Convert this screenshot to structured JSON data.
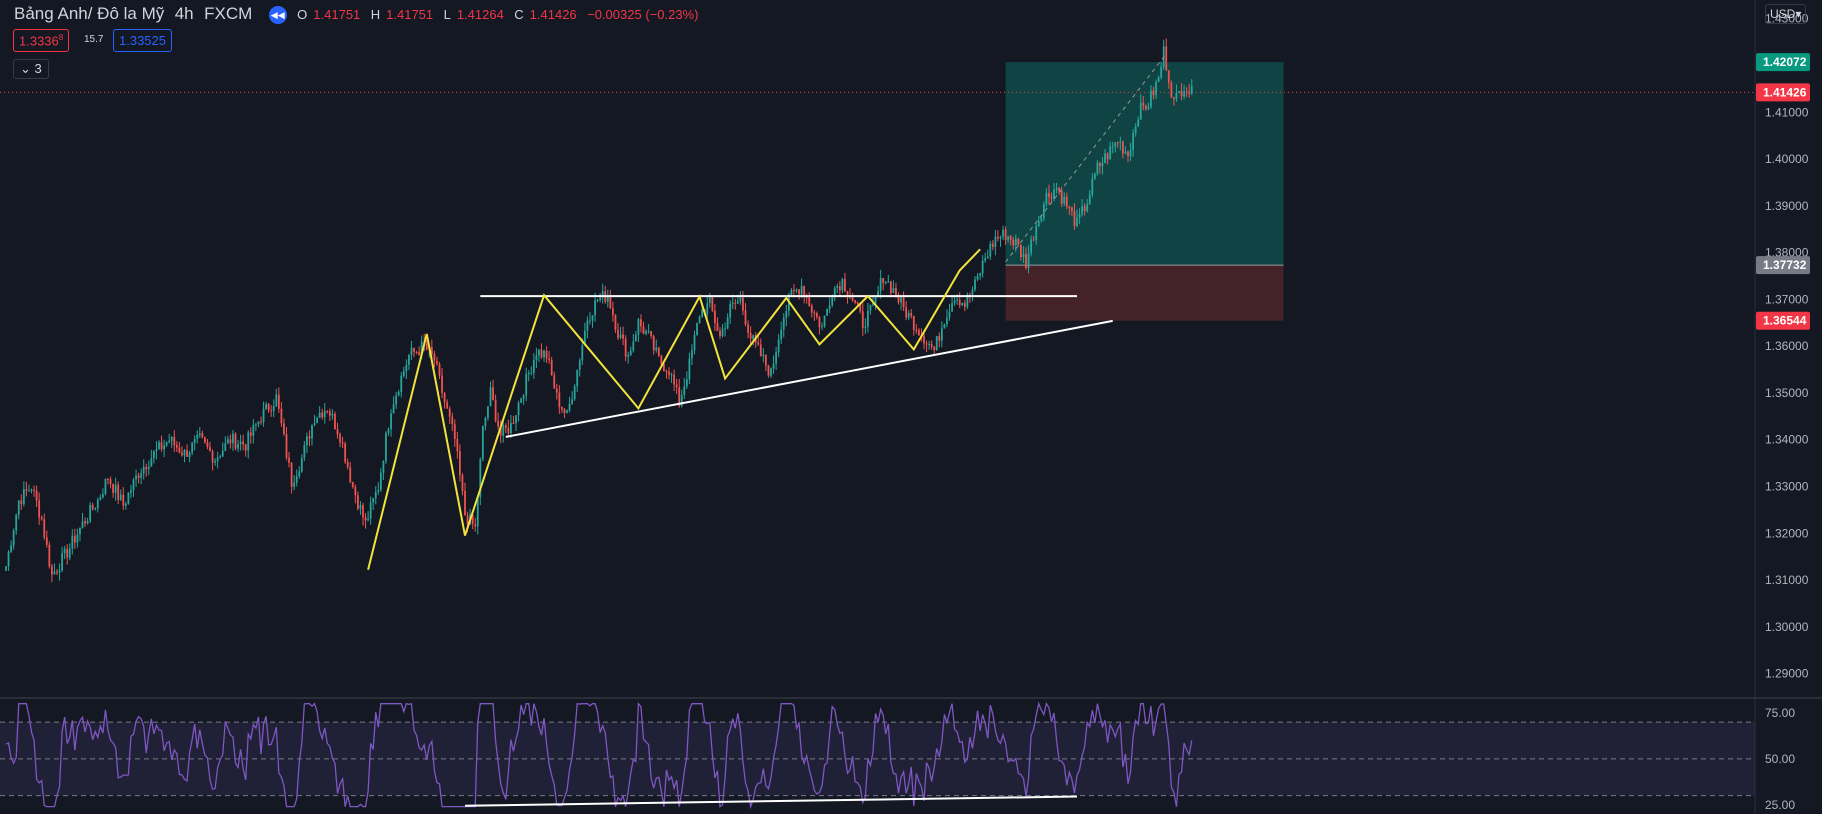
{
  "header": {
    "symbol": "Bảng Anh/ Đô la Mỹ",
    "interval": "4h",
    "exchange": "FXCM",
    "o_label": "O",
    "o_value": "1.41751",
    "h_label": "H",
    "h_value": "1.41751",
    "l_label": "L",
    "l_value": "1.41264",
    "c_label": "C",
    "c_value": "1.41426",
    "change": "−0.00325 (−0.23%)",
    "sell_price": "1.3336",
    "sell_sup": "8",
    "spread": "15.7",
    "buy_price": "1.33525",
    "collapse_icon": "chevron-down-icon",
    "collapse_count": "3",
    "currency_label": "USD"
  },
  "colors": {
    "background": "#141823",
    "up": "#26a69a",
    "down": "#ef5350",
    "pattern": "#f2e33c",
    "trendline": "#ffffff",
    "rsi": "#7e57c2",
    "target_zone": "#0f4c4a",
    "stop_zone": "#4a2329"
  },
  "chart_data": [
    {
      "type": "candlestick",
      "series_name": "GBP/USD 4h",
      "y_axis_ticks": [
        "1.43000",
        "1.42000",
        "1.41000",
        "1.40000",
        "1.39000",
        "1.38000",
        "1.37000",
        "1.36000",
        "1.35000",
        "1.34000",
        "1.33000",
        "1.32000",
        "1.31000",
        "1.30000",
        "1.29000"
      ],
      "ylim": [
        1.285,
        1.434
      ],
      "price_labels": [
        {
          "label": "1.42072",
          "value": 1.42072,
          "color": "#089981"
        },
        {
          "label": "1.41426",
          "value": 1.41426,
          "color": "#f23645"
        },
        {
          "label": "1.37732",
          "value": 1.37732,
          "color": "#787b86"
        },
        {
          "label": "1.36544",
          "value": 1.36544,
          "color": "#f23645"
        }
      ],
      "current_price": 1.41426,
      "price_path": [
        [
          0,
          1.313
        ],
        [
          5,
          1.327
        ],
        [
          10,
          1.33
        ],
        [
          14,
          1.323
        ],
        [
          18,
          1.311
        ],
        [
          24,
          1.316
        ],
        [
          30,
          1.322
        ],
        [
          36,
          1.327
        ],
        [
          40,
          1.332
        ],
        [
          46,
          1.326
        ],
        [
          52,
          1.333
        ],
        [
          58,
          1.337
        ],
        [
          64,
          1.34
        ],
        [
          70,
          1.337
        ],
        [
          76,
          1.34
        ],
        [
          82,
          1.336
        ],
        [
          88,
          1.34
        ],
        [
          94,
          1.339
        ],
        [
          100,
          1.345
        ],
        [
          106,
          1.349
        ],
        [
          112,
          1.331
        ],
        [
          116,
          1.336
        ],
        [
          121,
          1.345
        ],
        [
          126,
          1.347
        ],
        [
          131,
          1.341
        ],
        [
          136,
          1.33
        ],
        [
          141,
          1.322
        ],
        [
          146,
          1.33
        ],
        [
          151,
          1.347
        ],
        [
          158,
          1.358
        ],
        [
          164,
          1.36
        ],
        [
          168,
          1.357
        ],
        [
          172,
          1.348
        ],
        [
          176,
          1.34
        ],
        [
          180,
          1.324
        ],
        [
          184,
          1.321
        ],
        [
          187,
          1.342
        ],
        [
          190,
          1.35
        ],
        [
          194,
          1.341
        ],
        [
          198,
          1.343
        ],
        [
          203,
          1.351
        ],
        [
          208,
          1.359
        ],
        [
          212,
          1.358
        ],
        [
          216,
          1.349
        ],
        [
          220,
          1.345
        ],
        [
          224,
          1.355
        ],
        [
          228,
          1.366
        ],
        [
          232,
          1.37
        ],
        [
          236,
          1.371
        ],
        [
          240,
          1.363
        ],
        [
          244,
          1.358
        ],
        [
          248,
          1.365
        ],
        [
          252,
          1.362
        ],
        [
          256,
          1.357
        ],
        [
          260,
          1.355
        ],
        [
          264,
          1.348
        ],
        [
          268,
          1.356
        ],
        [
          272,
          1.367
        ],
        [
          276,
          1.369
        ],
        [
          280,
          1.362
        ],
        [
          284,
          1.368
        ],
        [
          288,
          1.37
        ],
        [
          292,
          1.362
        ],
        [
          296,
          1.358
        ],
        [
          300,
          1.354
        ],
        [
          304,
          1.365
        ],
        [
          308,
          1.371
        ],
        [
          312,
          1.373
        ],
        [
          316,
          1.368
        ],
        [
          320,
          1.364
        ],
        [
          324,
          1.372
        ],
        [
          328,
          1.374
        ],
        [
          332,
          1.37
        ],
        [
          336,
          1.365
        ],
        [
          340,
          1.368
        ],
        [
          344,
          1.375
        ],
        [
          348,
          1.372
        ],
        [
          352,
          1.368
        ],
        [
          356,
          1.365
        ],
        [
          360,
          1.362
        ],
        [
          364,
          1.359
        ],
        [
          368,
          1.366
        ],
        [
          372,
          1.371
        ],
        [
          376,
          1.369
        ],
        [
          380,
          1.373
        ],
        [
          384,
          1.379
        ],
        [
          388,
          1.383
        ],
        [
          392,
          1.384
        ],
        [
          396,
          1.382
        ],
        [
          400,
          1.378
        ],
        [
          404,
          1.386
        ],
        [
          408,
          1.392
        ],
        [
          412,
          1.394
        ],
        [
          416,
          1.39
        ],
        [
          420,
          1.386
        ],
        [
          424,
          1.391
        ],
        [
          428,
          1.398
        ],
        [
          432,
          1.401
        ],
        [
          436,
          1.404
        ],
        [
          440,
          1.401
        ],
        [
          444,
          1.41
        ],
        [
          448,
          1.412
        ],
        [
          452,
          1.417
        ],
        [
          454,
          1.423
        ],
        [
          458,
          1.412
        ],
        [
          462,
          1.416
        ],
        [
          465,
          1.414
        ]
      ],
      "pattern_points": [
        [
          142,
          1.3122
        ],
        [
          165,
          1.3626
        ],
        [
          180,
          1.3195
        ],
        [
          211,
          1.3709
        ],
        [
          248,
          1.3467
        ],
        [
          272,
          1.3706
        ],
        [
          282,
          1.3531
        ],
        [
          306,
          1.3703
        ],
        [
          319,
          1.3604
        ],
        [
          338,
          1.3707
        ],
        [
          356,
          1.3593
        ],
        [
          374,
          1.3762
        ],
        [
          382,
          1.3807
        ]
      ],
      "resistance_line": [
        [
          186,
          1.3707
        ],
        [
          420,
          1.3707
        ]
      ],
      "support_line": [
        [
          196,
          1.3406
        ],
        [
          434,
          1.3654
        ]
      ],
      "position": {
        "x_start": 392,
        "x_end": 501,
        "target": 1.42072,
        "entry": 1.37732,
        "stop": 1.36544
      }
    },
    {
      "type": "line",
      "series_name": "RSI",
      "y_axis_ticks": [
        "75.00",
        "50.00",
        "25.00"
      ],
      "ylim": [
        20,
        82
      ],
      "band": [
        30,
        70
      ],
      "midline": 50,
      "divergence_line": [
        [
          180,
          24.5
        ],
        [
          420,
          29.5
        ]
      ]
    }
  ]
}
